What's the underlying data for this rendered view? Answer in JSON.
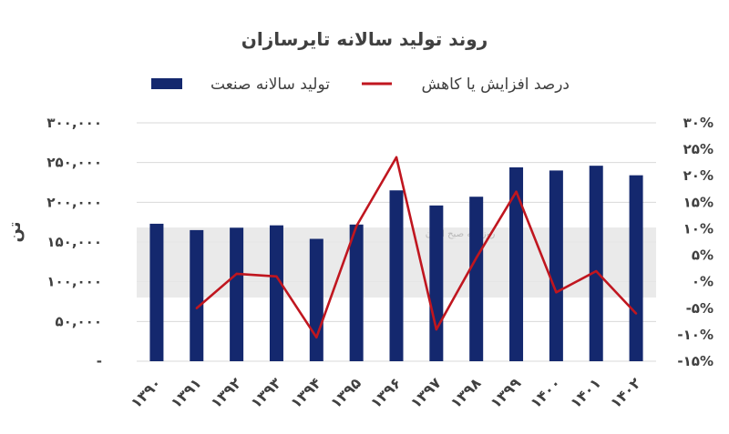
{
  "chart_data": {
    "type": "bar",
    "title": "روند تولید سالانه تایرسازان",
    "ylabel": "تن",
    "categories": [
      "۱۳۹۰",
      "۱۳۹۱",
      "۱۳۹۲",
      "۱۳۹۳",
      "۱۳۹۴",
      "۱۳۹۵",
      "۱۳۹۶",
      "۱۳۹۷",
      "۱۳۹۸",
      "۱۳۹۹",
      "۱۴۰۰",
      "۱۴۰۱",
      "۱۴۰۲"
    ],
    "series": [
      {
        "name": "تولید سالانه صنعت",
        "type": "bar",
        "axis": "left",
        "color": "#14286e",
        "values": [
          173000,
          165000,
          168000,
          171000,
          154000,
          172000,
          215000,
          196000,
          207000,
          244000,
          240000,
          246000,
          234000
        ]
      },
      {
        "name": "درصد افزایش یا کاهش",
        "type": "line",
        "axis": "right",
        "color": "#c0161f",
        "values": [
          null,
          -5,
          1.5,
          1,
          -10.5,
          10.5,
          23.5,
          -9,
          4.5,
          17,
          -2,
          2,
          -6
        ]
      }
    ],
    "left_axis": {
      "ylim": [
        0,
        300000
      ],
      "ticks": [
        0,
        50000,
        100000,
        150000,
        200000,
        250000,
        300000
      ],
      "tick_labels": [
        "-",
        "۵۰,۰۰۰",
        "۱۰۰,۰۰۰",
        "۱۵۰,۰۰۰",
        "۲۰۰,۰۰۰",
        "۲۵۰,۰۰۰",
        "۳۰۰,۰۰۰"
      ]
    },
    "right_axis": {
      "ylim": [
        -15,
        30
      ],
      "ticks": [
        -15,
        -10,
        -5,
        0,
        5,
        10,
        15,
        20,
        25,
        30
      ],
      "tick_labels": [
        "-۱۵%",
        "-۱۰%",
        "-۵%",
        "۰%",
        "۵%",
        "۱۰%",
        "۱۵%",
        "۲۰%",
        "۲۵%",
        "۳۰%"
      ]
    },
    "grid": true,
    "legend": "top"
  },
  "watermark": {
    "text": "روزنامه صبح ایران"
  }
}
